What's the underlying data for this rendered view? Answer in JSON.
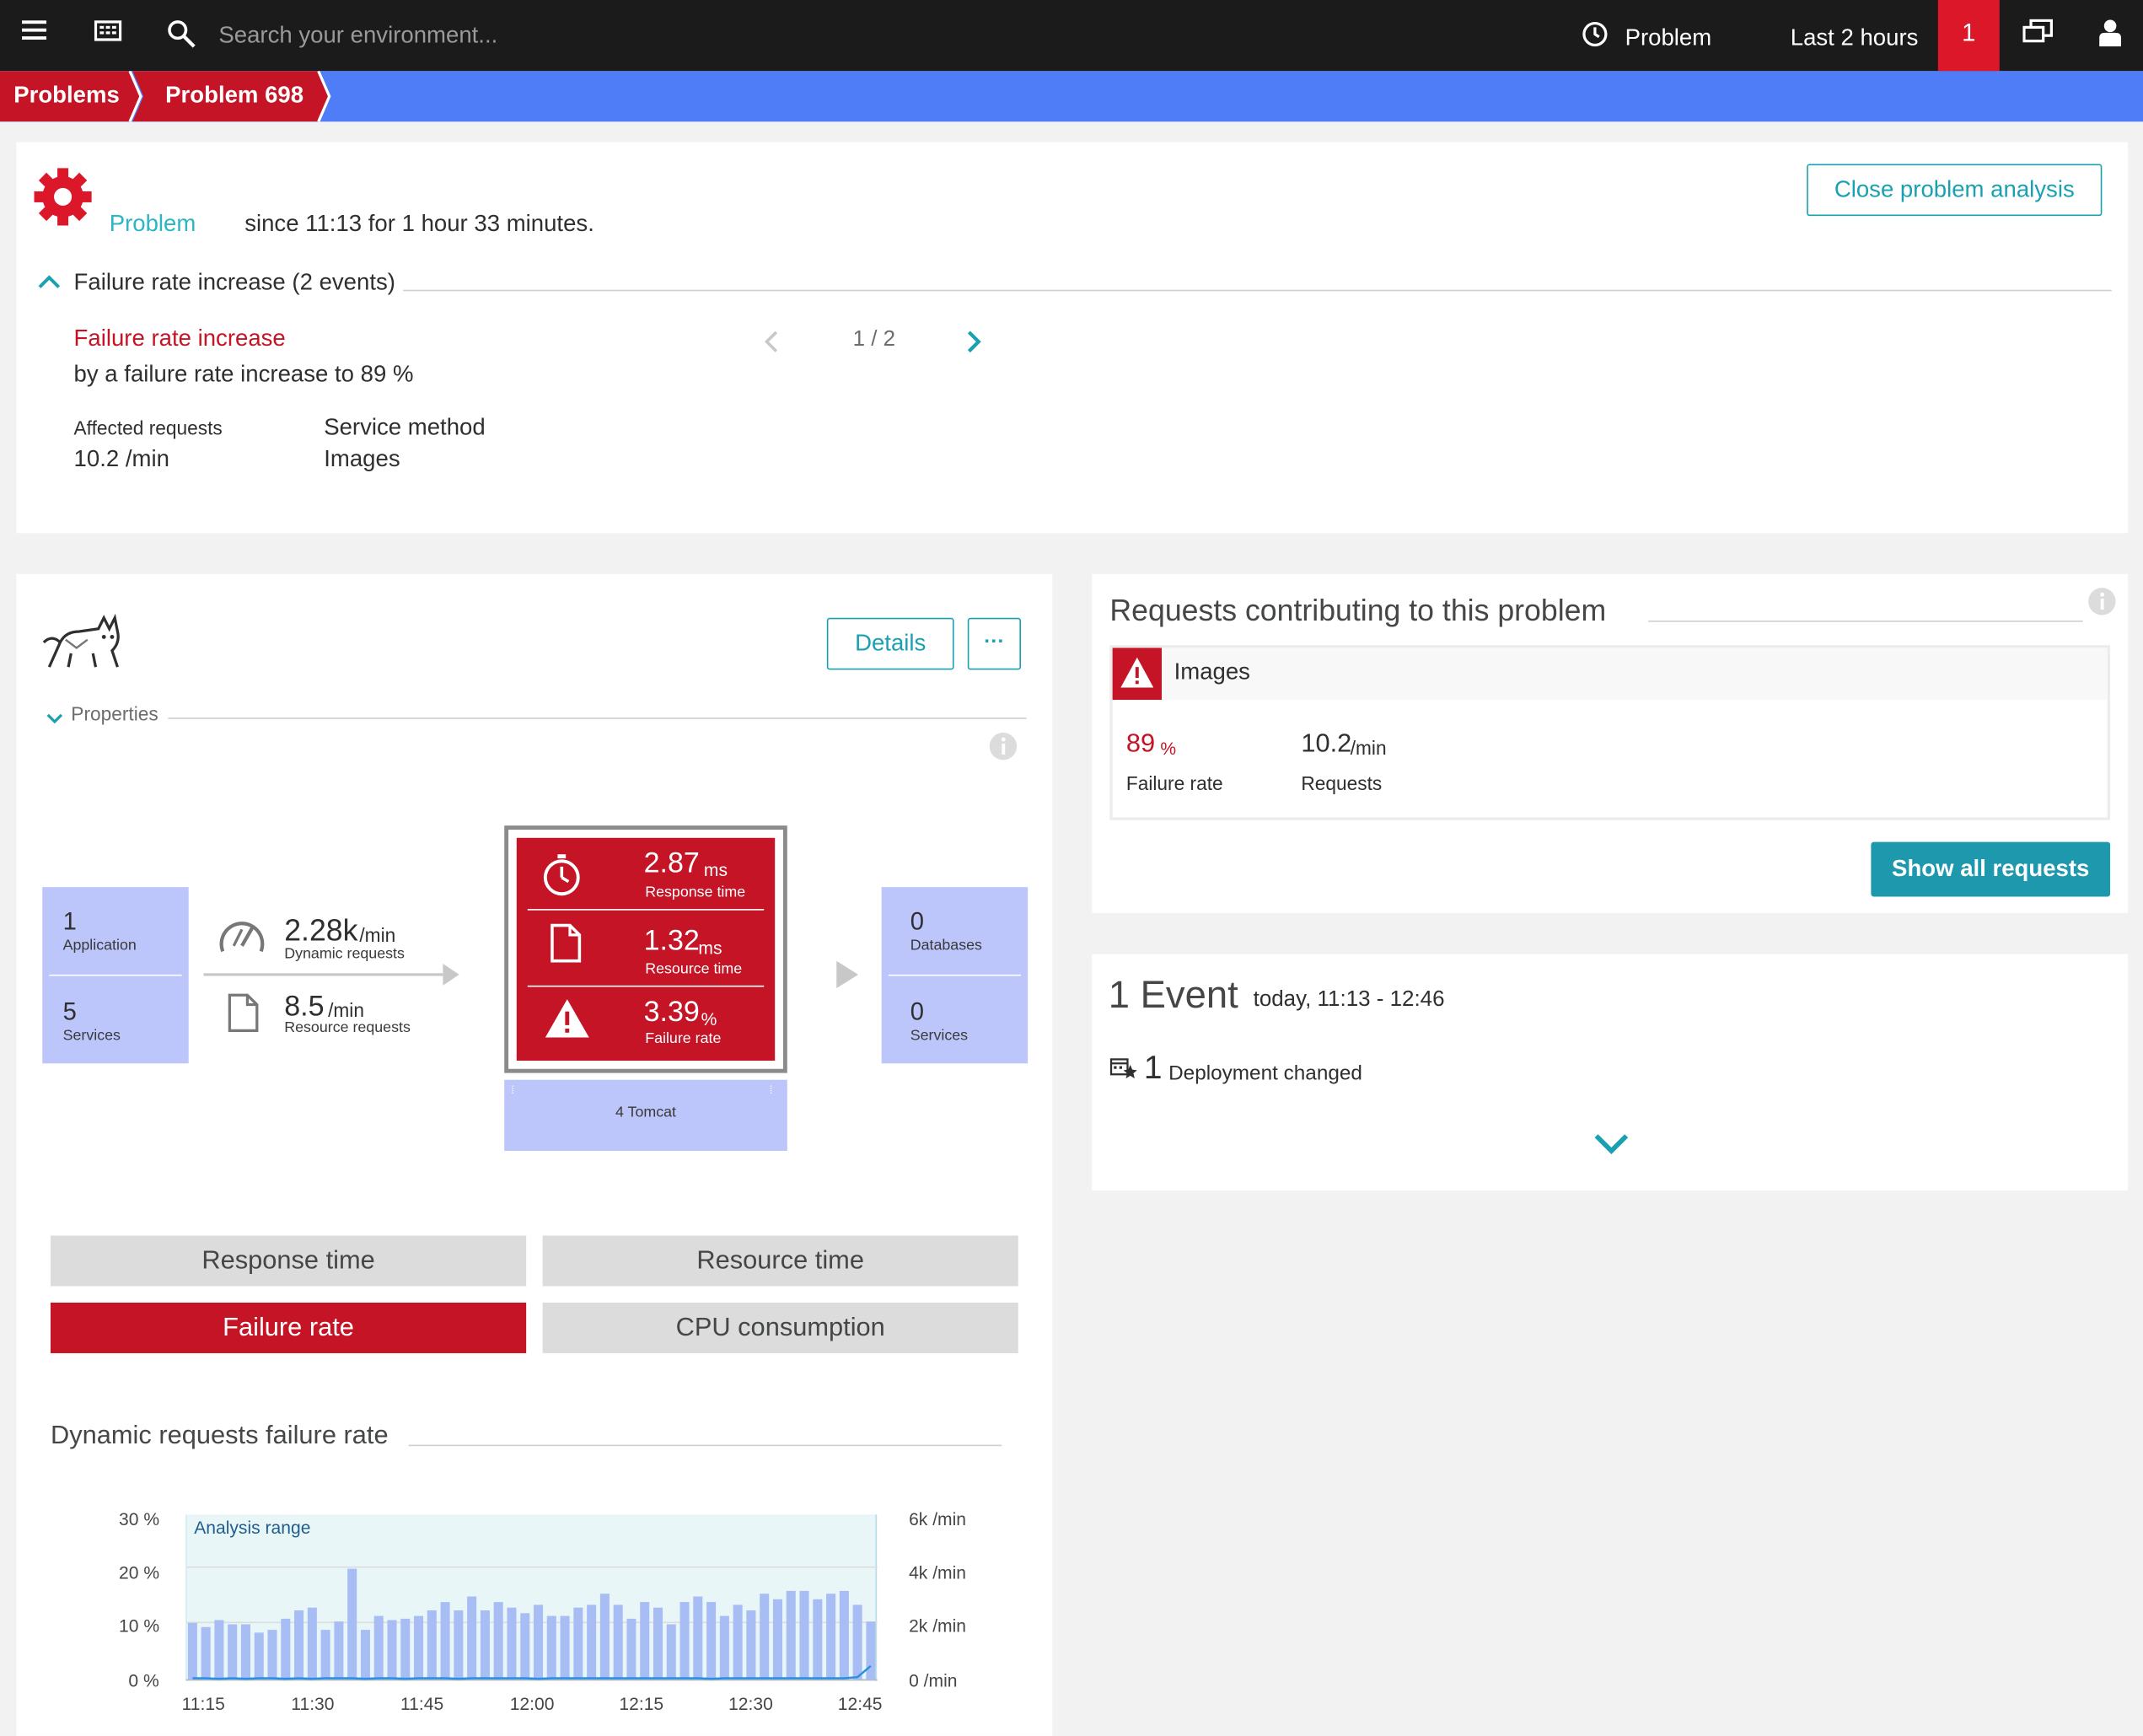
{
  "topbar": {
    "search_placeholder": "Search your environment...",
    "problem_label": "Problem",
    "timeframe": "Last 2 hours",
    "problem_count": "1"
  },
  "breadcrumb": {
    "items": [
      "Problems",
      "Problem 698"
    ]
  },
  "problem": {
    "status": "Problem",
    "since": "since 11:13 for 1 hour 33 minutes.",
    "close_label": "Close problem analysis",
    "section_title": "Failure rate increase (2 events)",
    "event_title": "Failure rate increase",
    "event_desc": "by a failure rate increase to 89 %",
    "pager": "1 / 2",
    "affected_label": "Affected requests",
    "affected_value": "10.2 /min",
    "method_label": "Service method",
    "method_value": "Images"
  },
  "service": {
    "details_label": "Details",
    "more_label": "···",
    "properties_label": "Properties",
    "left_tile": {
      "apps_count": "1",
      "apps_label": "Application",
      "services_count": "5",
      "services_label": "Services"
    },
    "dynamic": {
      "value": "2.28k",
      "unit": "/min",
      "label": "Dynamic requests"
    },
    "resource": {
      "value": "8.5",
      "unit": "/min",
      "label": "Resource requests"
    },
    "metrics": [
      {
        "value": "2.87",
        "unit": "ms",
        "label": "Response time"
      },
      {
        "value": "1.32",
        "unit": "ms",
        "label": "Resource time"
      },
      {
        "value": "3.39",
        "unit": "%",
        "label": "Failure rate"
      }
    ],
    "instances_label": "4 Tomcat",
    "right_tile": {
      "db_count": "0",
      "db_label": "Databases",
      "services_count": "0",
      "services_label": "Services"
    },
    "tabs": [
      "Response time",
      "Resource time",
      "Failure rate",
      "CPU consumption"
    ],
    "chart_title": "Dynamic requests failure rate",
    "analysis_range_label": "Analysis range"
  },
  "requests": {
    "title": "Requests contributing to this problem",
    "name": "Images",
    "failure_value": "89",
    "failure_unit": "%",
    "failure_label": "Failure rate",
    "requests_value": "10.2",
    "requests_unit": "/min",
    "requests_label": "Requests",
    "show_all_label": "Show all requests"
  },
  "events": {
    "count_title": "1 Event",
    "range": "today, 11:13 - 12:46",
    "item_count": "1",
    "item_label": "Deployment changed"
  },
  "chart_data": {
    "type": "bar",
    "title": "Dynamic requests failure rate",
    "x_ticks": [
      "11:15",
      "11:30",
      "11:45",
      "12:00",
      "12:15",
      "12:30",
      "12:45"
    ],
    "y_left_ticks": [
      "30 %",
      "20 %",
      "10 %",
      "0 %"
    ],
    "y_right_ticks": [
      "6k /min",
      "4k /min",
      "2k /min",
      "0 /min"
    ],
    "y_right_max": 6000,
    "series": [
      {
        "values": [
          2050,
          1900,
          2150,
          2000,
          2000,
          1700,
          1800,
          2200,
          2500,
          2600,
          1800,
          2100,
          4000,
          1800,
          2300,
          2150,
          2200,
          2300,
          2500,
          2800,
          2500,
          3000,
          2500,
          2800,
          2600,
          2400,
          2700,
          2300,
          2300,
          2600,
          2700,
          3100,
          2700,
          2200,
          2800,
          2600,
          2000,
          2800,
          3000,
          2800,
          2300,
          2700,
          2500,
          3100,
          2900,
          3200,
          3200,
          2900,
          3100,
          3200,
          2700,
          2100
        ],
        "color": "#a9bdf5"
      },
      {
        "values": [
          0.3,
          0.3,
          0.2,
          0.3,
          0.2,
          0.3,
          0.3,
          0.2,
          0.3,
          0.2,
          0.3,
          0.3,
          0.3,
          0.2,
          0.3,
          0.3,
          0.2,
          0.3,
          0.3,
          0.3,
          0.2,
          0.3,
          0.3,
          0.3,
          0.3,
          0.3,
          0.2,
          0.3,
          0.3,
          0.3,
          0.3,
          0.3,
          0.3,
          0.3,
          0.3,
          0.3,
          0.3,
          0.3,
          0.3,
          0.2,
          0.3,
          0.3,
          0.3,
          0.3,
          0.3,
          0.3,
          0.3,
          0.3,
          0.3,
          0.3,
          0.5,
          2.5
        ],
        "color": "#2a8fe0"
      }
    ]
  }
}
